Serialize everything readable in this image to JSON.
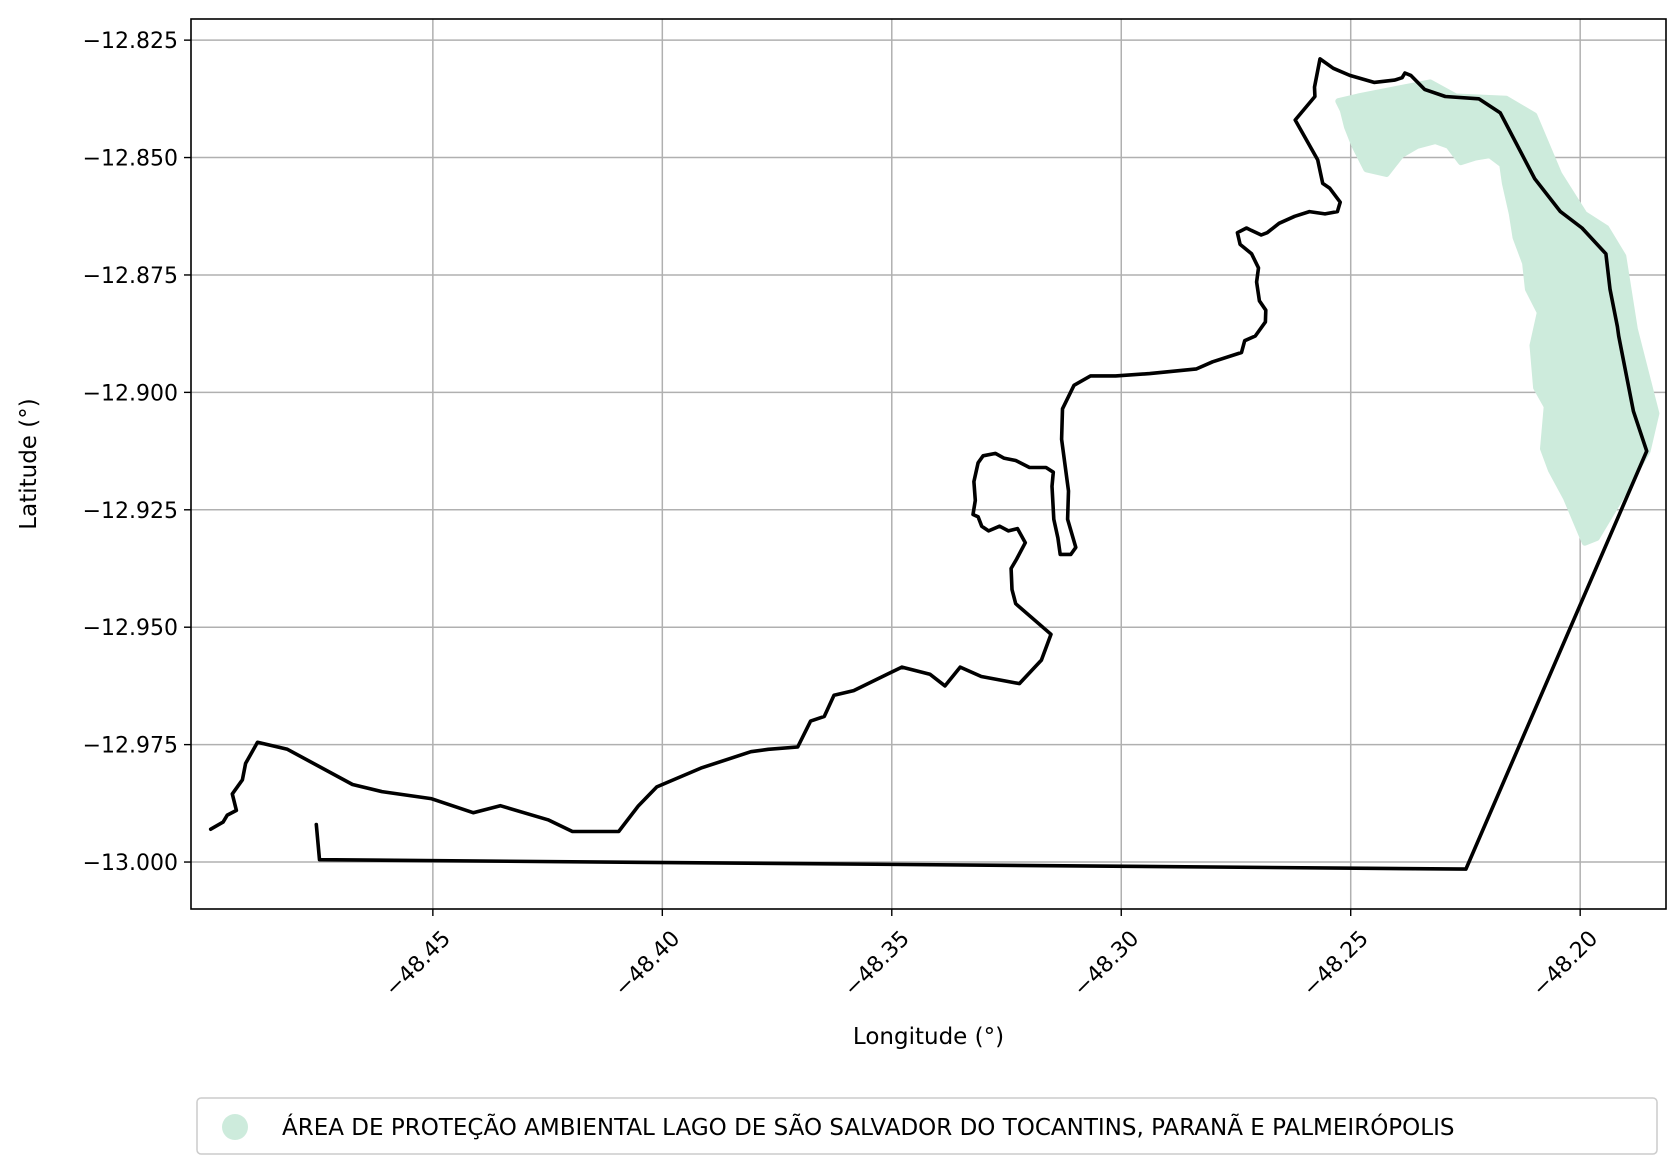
{
  "chart_data": {
    "type": "map",
    "xlabel": "Longitude (°)",
    "ylabel": "Latitude (°)",
    "xlim": [
      -48.5027,
      -48.1813
    ],
    "ylim": [
      -13.01,
      -12.8205
    ],
    "xticks": [
      -48.45,
      -48.4,
      -48.35,
      -48.3,
      -48.25,
      -48.2
    ],
    "yticks": [
      -12.825,
      -12.85,
      -12.875,
      -12.9,
      -12.925,
      -12.95,
      -12.975,
      -13.0
    ],
    "xtick_labels": [
      "−48.45",
      "−48.40",
      "−48.35",
      "−48.30",
      "−48.25",
      "−48.20"
    ],
    "ytick_labels": [
      "−12.825",
      "−12.850",
      "−12.875",
      "−12.900",
      "−12.925",
      "−12.950",
      "−12.975",
      "−13.000"
    ],
    "grid": true,
    "legend_position": "bottom-center",
    "legend": [
      {
        "label": "ÁREA DE PROTEÇÃO AMBIENTAL LAGO DE SÃO SALVADOR DO TOCANTINS, PARANÃ E PALMEIRÓPOLIS",
        "color": "#cdebdc"
      }
    ],
    "protected_area": {
      "color": "#cdebdc",
      "polygon": [
        [
          -48.2527,
          -12.838
        ],
        [
          -48.2484,
          -12.837
        ],
        [
          -48.2406,
          -12.8355
        ],
        [
          -48.2327,
          -12.834
        ],
        [
          -48.2271,
          -12.837
        ],
        [
          -48.2161,
          -12.8375
        ],
        [
          -48.21,
          -12.841
        ],
        [
          -48.2046,
          -12.8535
        ],
        [
          -48.1991,
          -12.862
        ],
        [
          -48.1943,
          -12.865
        ],
        [
          -48.1906,
          -12.871
        ],
        [
          -48.1881,
          -12.8865
        ],
        [
          -48.1834,
          -12.9045
        ],
        [
          -48.1853,
          -12.9125
        ],
        [
          -48.1918,
          -12.9235
        ],
        [
          -48.1964,
          -12.931
        ],
        [
          -48.199,
          -12.932
        ],
        [
          -48.2031,
          -12.9225
        ],
        [
          -48.2064,
          -12.9165
        ],
        [
          -48.2081,
          -12.912
        ],
        [
          -48.2073,
          -12.903
        ],
        [
          -48.2096,
          -12.899
        ],
        [
          -48.2104,
          -12.89
        ],
        [
          -48.2088,
          -12.883
        ],
        [
          -48.2114,
          -12.878
        ],
        [
          -48.212,
          -12.8725
        ],
        [
          -48.2141,
          -12.867
        ],
        [
          -48.2149,
          -12.862
        ],
        [
          -48.2164,
          -12.8555
        ],
        [
          -48.217,
          -12.8515
        ],
        [
          -48.2197,
          -12.8495
        ],
        [
          -48.2228,
          -12.85
        ],
        [
          -48.226,
          -12.851
        ],
        [
          -48.2287,
          -12.8475
        ],
        [
          -48.2316,
          -12.8465
        ],
        [
          -48.2355,
          -12.8475
        ],
        [
          -48.239,
          -12.8495
        ],
        [
          -48.2422,
          -12.8535
        ],
        [
          -48.2466,
          -12.8525
        ],
        [
          -48.2492,
          -12.8475
        ],
        [
          -48.2508,
          -12.8435
        ],
        [
          -48.2517,
          -12.84
        ]
      ]
    },
    "boundary": {
      "color": "#000000",
      "points": [
        [
          -48.4754,
          -12.992
        ],
        [
          -48.4747,
          -12.9995
        ],
        [
          -48.2249,
          -13.0015
        ],
        [
          -48.1855,
          -12.9125
        ],
        [
          -48.1884,
          -12.904
        ],
        [
          -48.1916,
          -12.888
        ],
        [
          -48.1919,
          -12.886
        ],
        [
          -48.1935,
          -12.878
        ],
        [
          -48.1944,
          -12.8705
        ],
        [
          -48.1996,
          -12.865
        ],
        [
          -48.2043,
          -12.8615
        ],
        [
          -48.2099,
          -12.8545
        ],
        [
          -48.2174,
          -12.8405
        ],
        [
          -48.2221,
          -12.8375
        ],
        [
          -48.2294,
          -12.837
        ],
        [
          -48.2339,
          -12.8355
        ],
        [
          -48.2369,
          -12.8325
        ],
        [
          -48.2382,
          -12.832
        ],
        [
          -48.2388,
          -12.833
        ],
        [
          -48.2404,
          -12.8335
        ],
        [
          -48.2449,
          -12.834
        ],
        [
          -48.2502,
          -12.8325
        ],
        [
          -48.2538,
          -12.831
        ],
        [
          -48.2567,
          -12.829
        ],
        [
          -48.2579,
          -12.835
        ],
        [
          -48.2578,
          -12.837
        ],
        [
          -48.2621,
          -12.842
        ],
        [
          -48.2572,
          -12.8505
        ],
        [
          -48.2561,
          -12.8555
        ],
        [
          -48.2546,
          -12.8565
        ],
        [
          -48.2523,
          -12.8595
        ],
        [
          -48.2529,
          -12.8615
        ],
        [
          -48.2556,
          -12.862
        ],
        [
          -48.259,
          -12.8615
        ],
        [
          -48.2622,
          -12.8625
        ],
        [
          -48.2656,
          -12.864
        ],
        [
          -48.2682,
          -12.866
        ],
        [
          -48.2695,
          -12.8665
        ],
        [
          -48.2717,
          -12.8655
        ],
        [
          -48.2727,
          -12.865
        ],
        [
          -48.2747,
          -12.866
        ],
        [
          -48.2741,
          -12.8685
        ],
        [
          -48.2716,
          -12.8705
        ],
        [
          -48.2701,
          -12.8735
        ],
        [
          -48.2705,
          -12.8765
        ],
        [
          -48.2699,
          -12.8805
        ],
        [
          -48.2685,
          -12.8825
        ],
        [
          -48.2686,
          -12.885
        ],
        [
          -48.2708,
          -12.888
        ],
        [
          -48.2731,
          -12.889
        ],
        [
          -48.2738,
          -12.8915
        ],
        [
          -48.2801,
          -12.8935
        ],
        [
          -48.2836,
          -12.895
        ],
        [
          -48.2938,
          -12.896
        ],
        [
          -48.3012,
          -12.8965
        ],
        [
          -48.3067,
          -12.8965
        ],
        [
          -48.3103,
          -12.8985
        ],
        [
          -48.3128,
          -12.9035
        ],
        [
          -48.313,
          -12.91
        ],
        [
          -48.3115,
          -12.921
        ],
        [
          -48.3117,
          -12.927
        ],
        [
          -48.3099,
          -12.933
        ],
        [
          -48.311,
          -12.9345
        ],
        [
          -48.3133,
          -12.9345
        ],
        [
          -48.3138,
          -12.931
        ],
        [
          -48.3147,
          -12.927
        ],
        [
          -48.3151,
          -12.92
        ],
        [
          -48.3148,
          -12.917
        ],
        [
          -48.3164,
          -12.916
        ],
        [
          -48.32,
          -12.916
        ],
        [
          -48.323,
          -12.9145
        ],
        [
          -48.3256,
          -12.914
        ],
        [
          -48.3274,
          -12.913
        ],
        [
          -48.3301,
          -12.9135
        ],
        [
          -48.3312,
          -12.915
        ],
        [
          -48.3321,
          -12.919
        ],
        [
          -48.3318,
          -12.923
        ],
        [
          -48.3323,
          -12.926
        ],
        [
          -48.3312,
          -12.9265
        ],
        [
          -48.3304,
          -12.9285
        ],
        [
          -48.3289,
          -12.9295
        ],
        [
          -48.3265,
          -12.9285
        ],
        [
          -48.3246,
          -12.9295
        ],
        [
          -48.3226,
          -12.929
        ],
        [
          -48.3209,
          -12.932
        ],
        [
          -48.3228,
          -12.9355
        ],
        [
          -48.324,
          -12.9375
        ],
        [
          -48.3238,
          -12.942
        ],
        [
          -48.323,
          -12.945
        ],
        [
          -48.3153,
          -12.9515
        ],
        [
          -48.3174,
          -12.957
        ],
        [
          -48.3222,
          -12.962
        ],
        [
          -48.3305,
          -12.9605
        ],
        [
          -48.3351,
          -12.9585
        ],
        [
          -48.3384,
          -12.9625
        ],
        [
          -48.3417,
          -12.96
        ],
        [
          -48.3478,
          -12.9585
        ],
        [
          -48.3583,
          -12.9635
        ],
        [
          -48.3626,
          -12.9645
        ],
        [
          -48.3647,
          -12.969
        ],
        [
          -48.3677,
          -12.97
        ],
        [
          -48.3705,
          -12.9755
        ],
        [
          -48.3769,
          -12.976
        ],
        [
          -48.3807,
          -12.9765
        ],
        [
          -48.3916,
          -12.98
        ],
        [
          -48.4012,
          -12.984
        ],
        [
          -48.4052,
          -12.988
        ],
        [
          -48.4095,
          -12.9935
        ],
        [
          -48.4196,
          -12.9935
        ],
        [
          -48.4249,
          -12.991
        ],
        [
          -48.4353,
          -12.988
        ],
        [
          -48.4412,
          -12.9895
        ],
        [
          -48.4504,
          -12.9865
        ],
        [
          -48.4611,
          -12.985
        ],
        [
          -48.4675,
          -12.9835
        ],
        [
          -48.4817,
          -12.976
        ],
        [
          -48.4882,
          -12.9745
        ],
        [
          -48.4908,
          -12.979
        ],
        [
          -48.4915,
          -12.9825
        ],
        [
          -48.4937,
          -12.9855
        ],
        [
          -48.4928,
          -12.989
        ],
        [
          -48.4948,
          -12.99
        ],
        [
          -48.4957,
          -12.9915
        ],
        [
          -48.4984,
          -12.993
        ]
      ]
    }
  }
}
